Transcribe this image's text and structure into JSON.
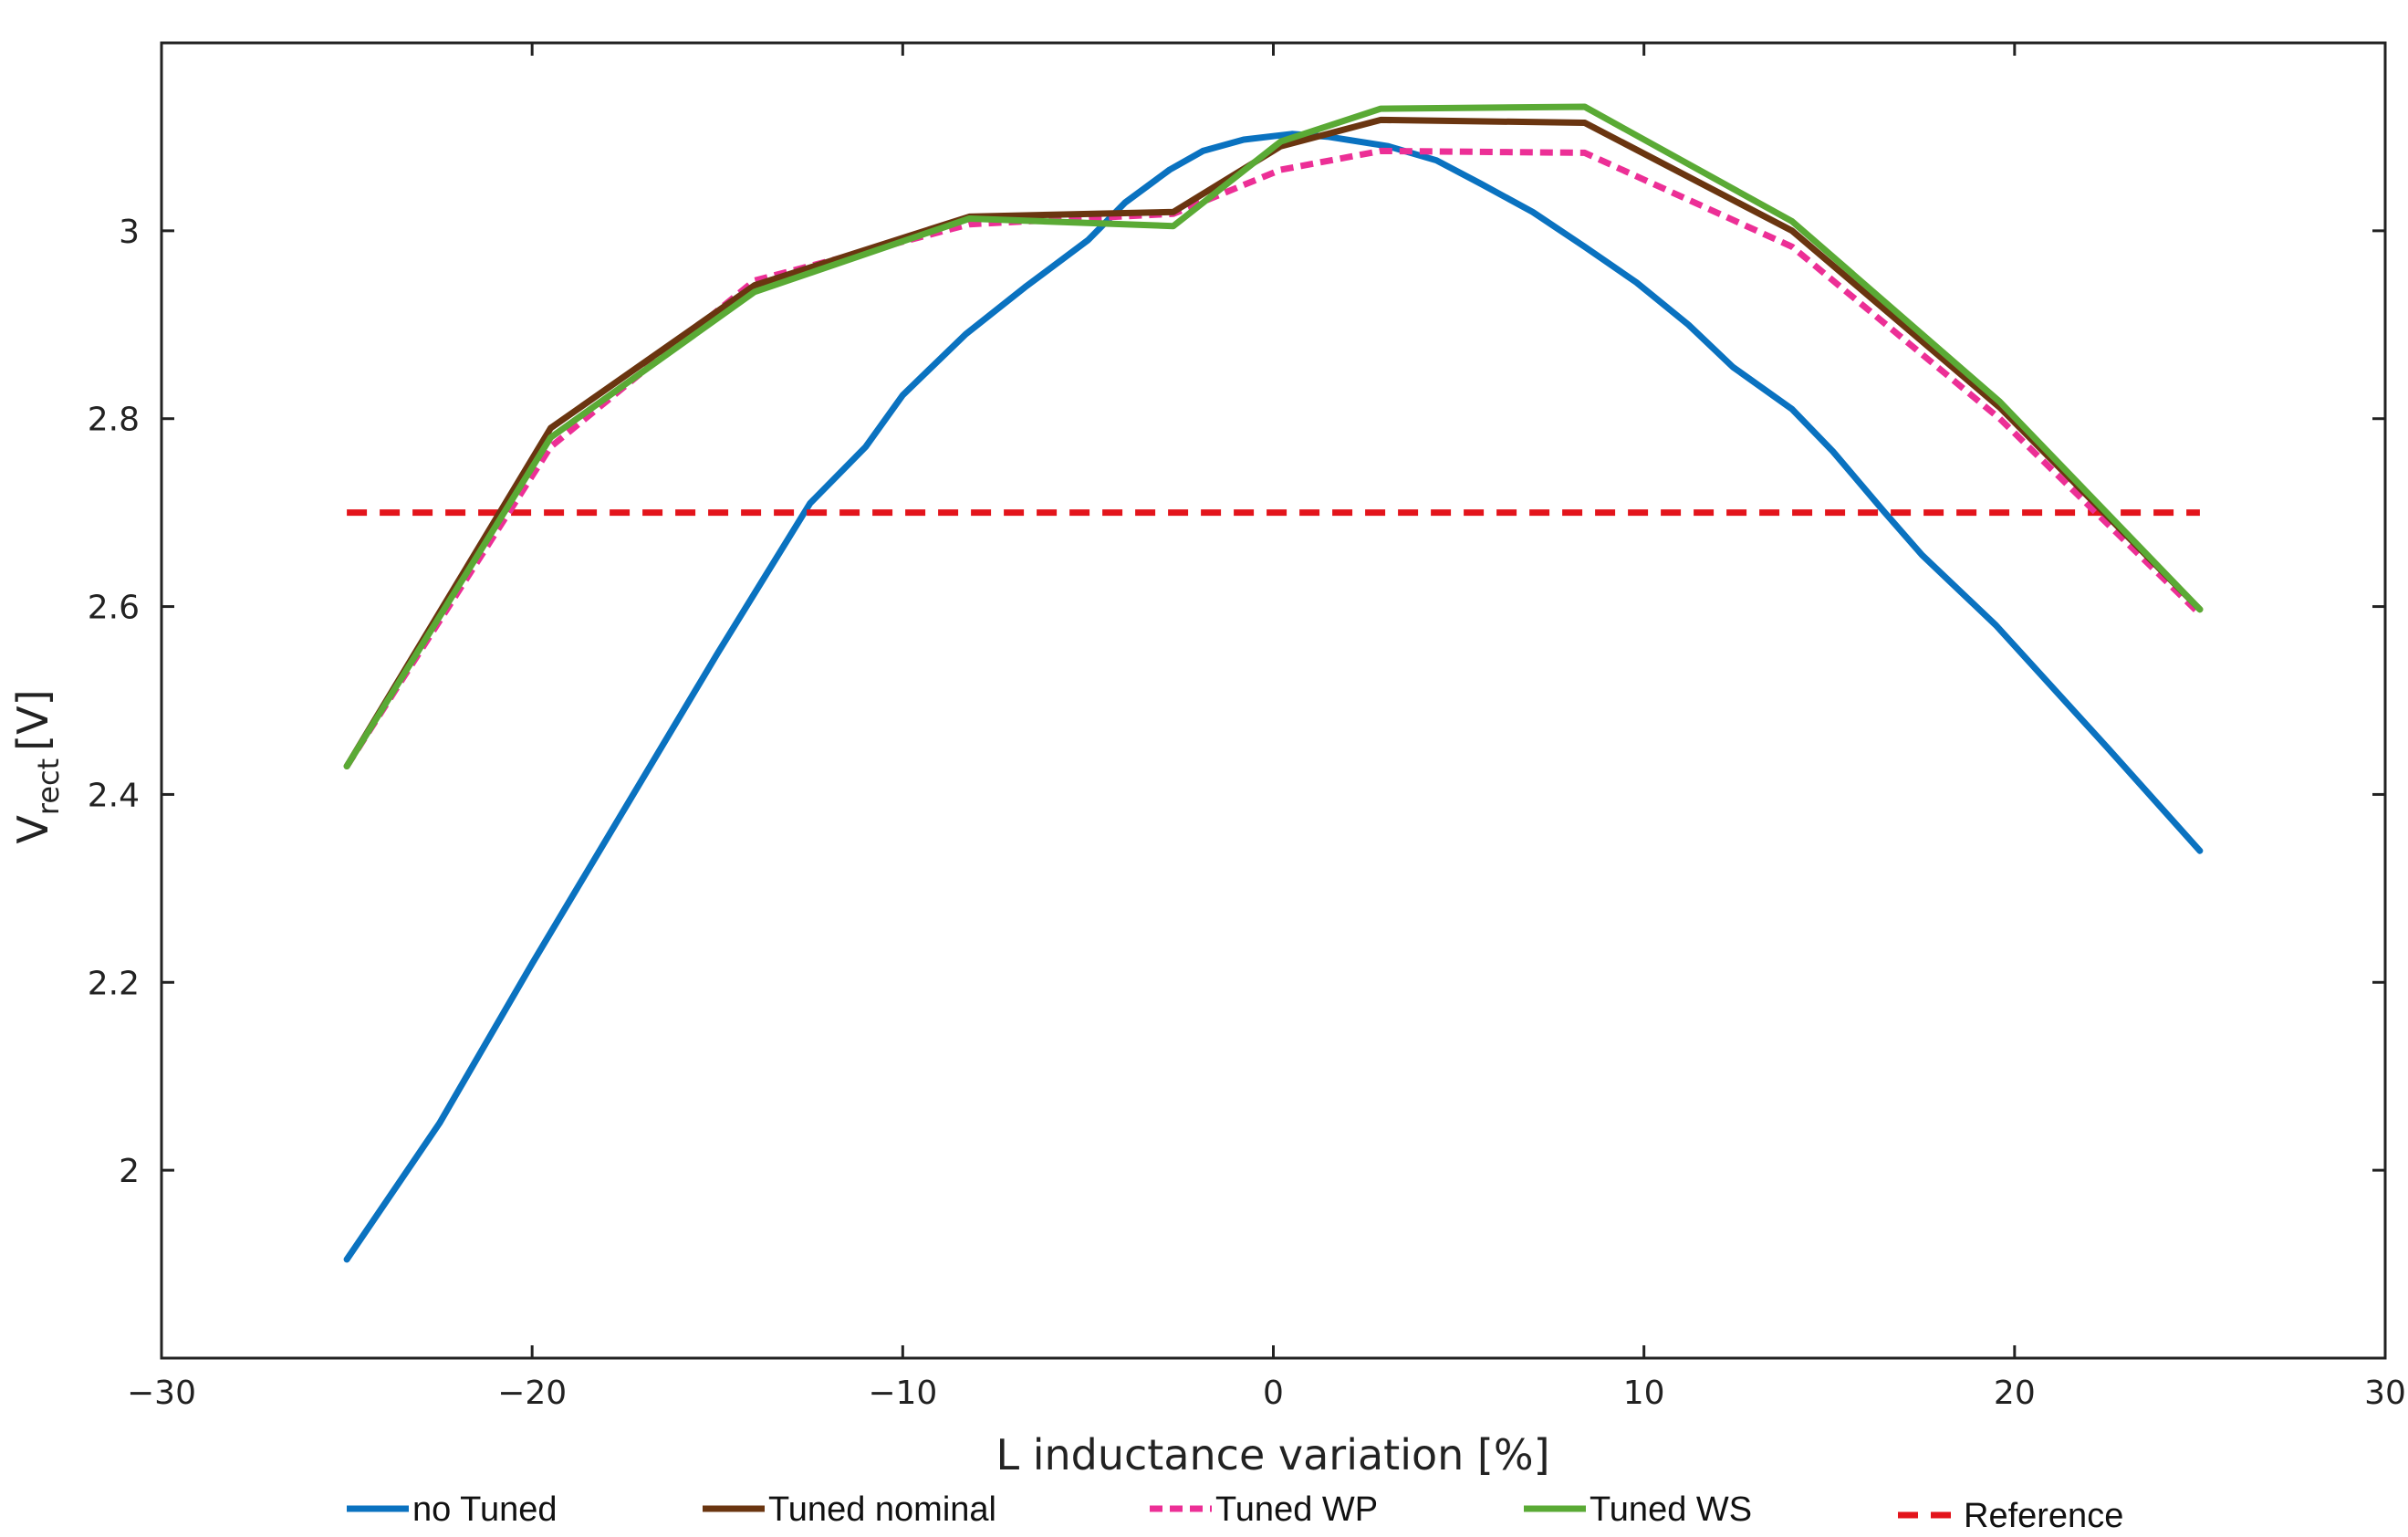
{
  "chart_data": {
    "type": "line",
    "title": "",
    "xlabel": "L inductance variation [%]",
    "ylabel": {
      "main": "V",
      "sub": "rect",
      "unit": "[V]"
    },
    "xlim": [
      -30,
      30
    ],
    "ylim": [
      1.8,
      3.2
    ],
    "xticks": [
      -30,
      -20,
      -10,
      0,
      10,
      20,
      30
    ],
    "xtick_labels": [
      "−30",
      "−20",
      "−10",
      "0",
      "10",
      "20",
      "30"
    ],
    "yticks": [
      2,
      2.2,
      2.4,
      2.6,
      2.8,
      3
    ],
    "ytick_labels": [
      "2",
      "2.2",
      "2.4",
      "2.6",
      "2.8",
      "3"
    ],
    "grid": false,
    "legend_position": "bottom",
    "series": [
      {
        "name": "no Tuned",
        "color": "#0a72c0",
        "dash": "solid",
        "x": [
          -25,
          -22.5,
          -20,
          -17.5,
          -15,
          -12.5,
          -11,
          -10,
          -8.3,
          -6.7,
          -5,
          -4,
          -2.8,
          -1.9,
          -0.8,
          0.5,
          1.5,
          3.1,
          4.4,
          5.6,
          7,
          8.4,
          9.8,
          11.2,
          12.4,
          14,
          15.1,
          16.5,
          17.5,
          19.5,
          22.5,
          25
        ],
        "y": [
          1.905,
          2.05,
          2.22,
          2.385,
          2.55,
          2.71,
          2.77,
          2.825,
          2.89,
          2.94,
          2.99,
          3.03,
          3.065,
          3.085,
          3.097,
          3.103,
          3.1,
          3.09,
          3.075,
          3.05,
          3.02,
          2.983,
          2.945,
          2.9,
          2.855,
          2.81,
          2.765,
          2.7,
          2.655,
          2.58,
          2.45,
          2.34
        ]
      },
      {
        "name": "Tuned nominal",
        "color": "#6a3510",
        "dash": "solid",
        "x": [
          -25,
          -19.5,
          -14,
          -8.2,
          -2.7,
          0.2,
          2.9,
          8.4,
          14,
          19.6,
          25
        ],
        "y": [
          2.43,
          2.79,
          2.942,
          3.015,
          3.02,
          3.09,
          3.118,
          3.115,
          3.0,
          2.812,
          2.597
        ]
      },
      {
        "name": "Tuned WP",
        "color": "#ec2f96",
        "dash": "dotted",
        "x": [
          -25,
          -19.5,
          -14,
          -8.2,
          -2.7,
          0.2,
          2.9,
          8.4,
          14,
          19.6,
          25
        ],
        "y": [
          2.43,
          2.77,
          2.947,
          3.007,
          3.018,
          3.065,
          3.085,
          3.083,
          2.983,
          2.8,
          2.592
        ]
      },
      {
        "name": "Tuned WS",
        "color": "#5aaa35",
        "dash": "solid",
        "x": [
          -25,
          -19.5,
          -14,
          -8.2,
          -2.7,
          0.2,
          2.9,
          8.4,
          14,
          19.6,
          25
        ],
        "y": [
          2.43,
          2.78,
          2.935,
          3.013,
          3.005,
          3.095,
          3.13,
          3.132,
          3.01,
          2.818,
          2.597
        ]
      },
      {
        "name": "Reference",
        "color": "#e3141b",
        "dash": "dashed",
        "x": [
          -25,
          25
        ],
        "y": [
          2.7,
          2.7
        ]
      }
    ]
  }
}
